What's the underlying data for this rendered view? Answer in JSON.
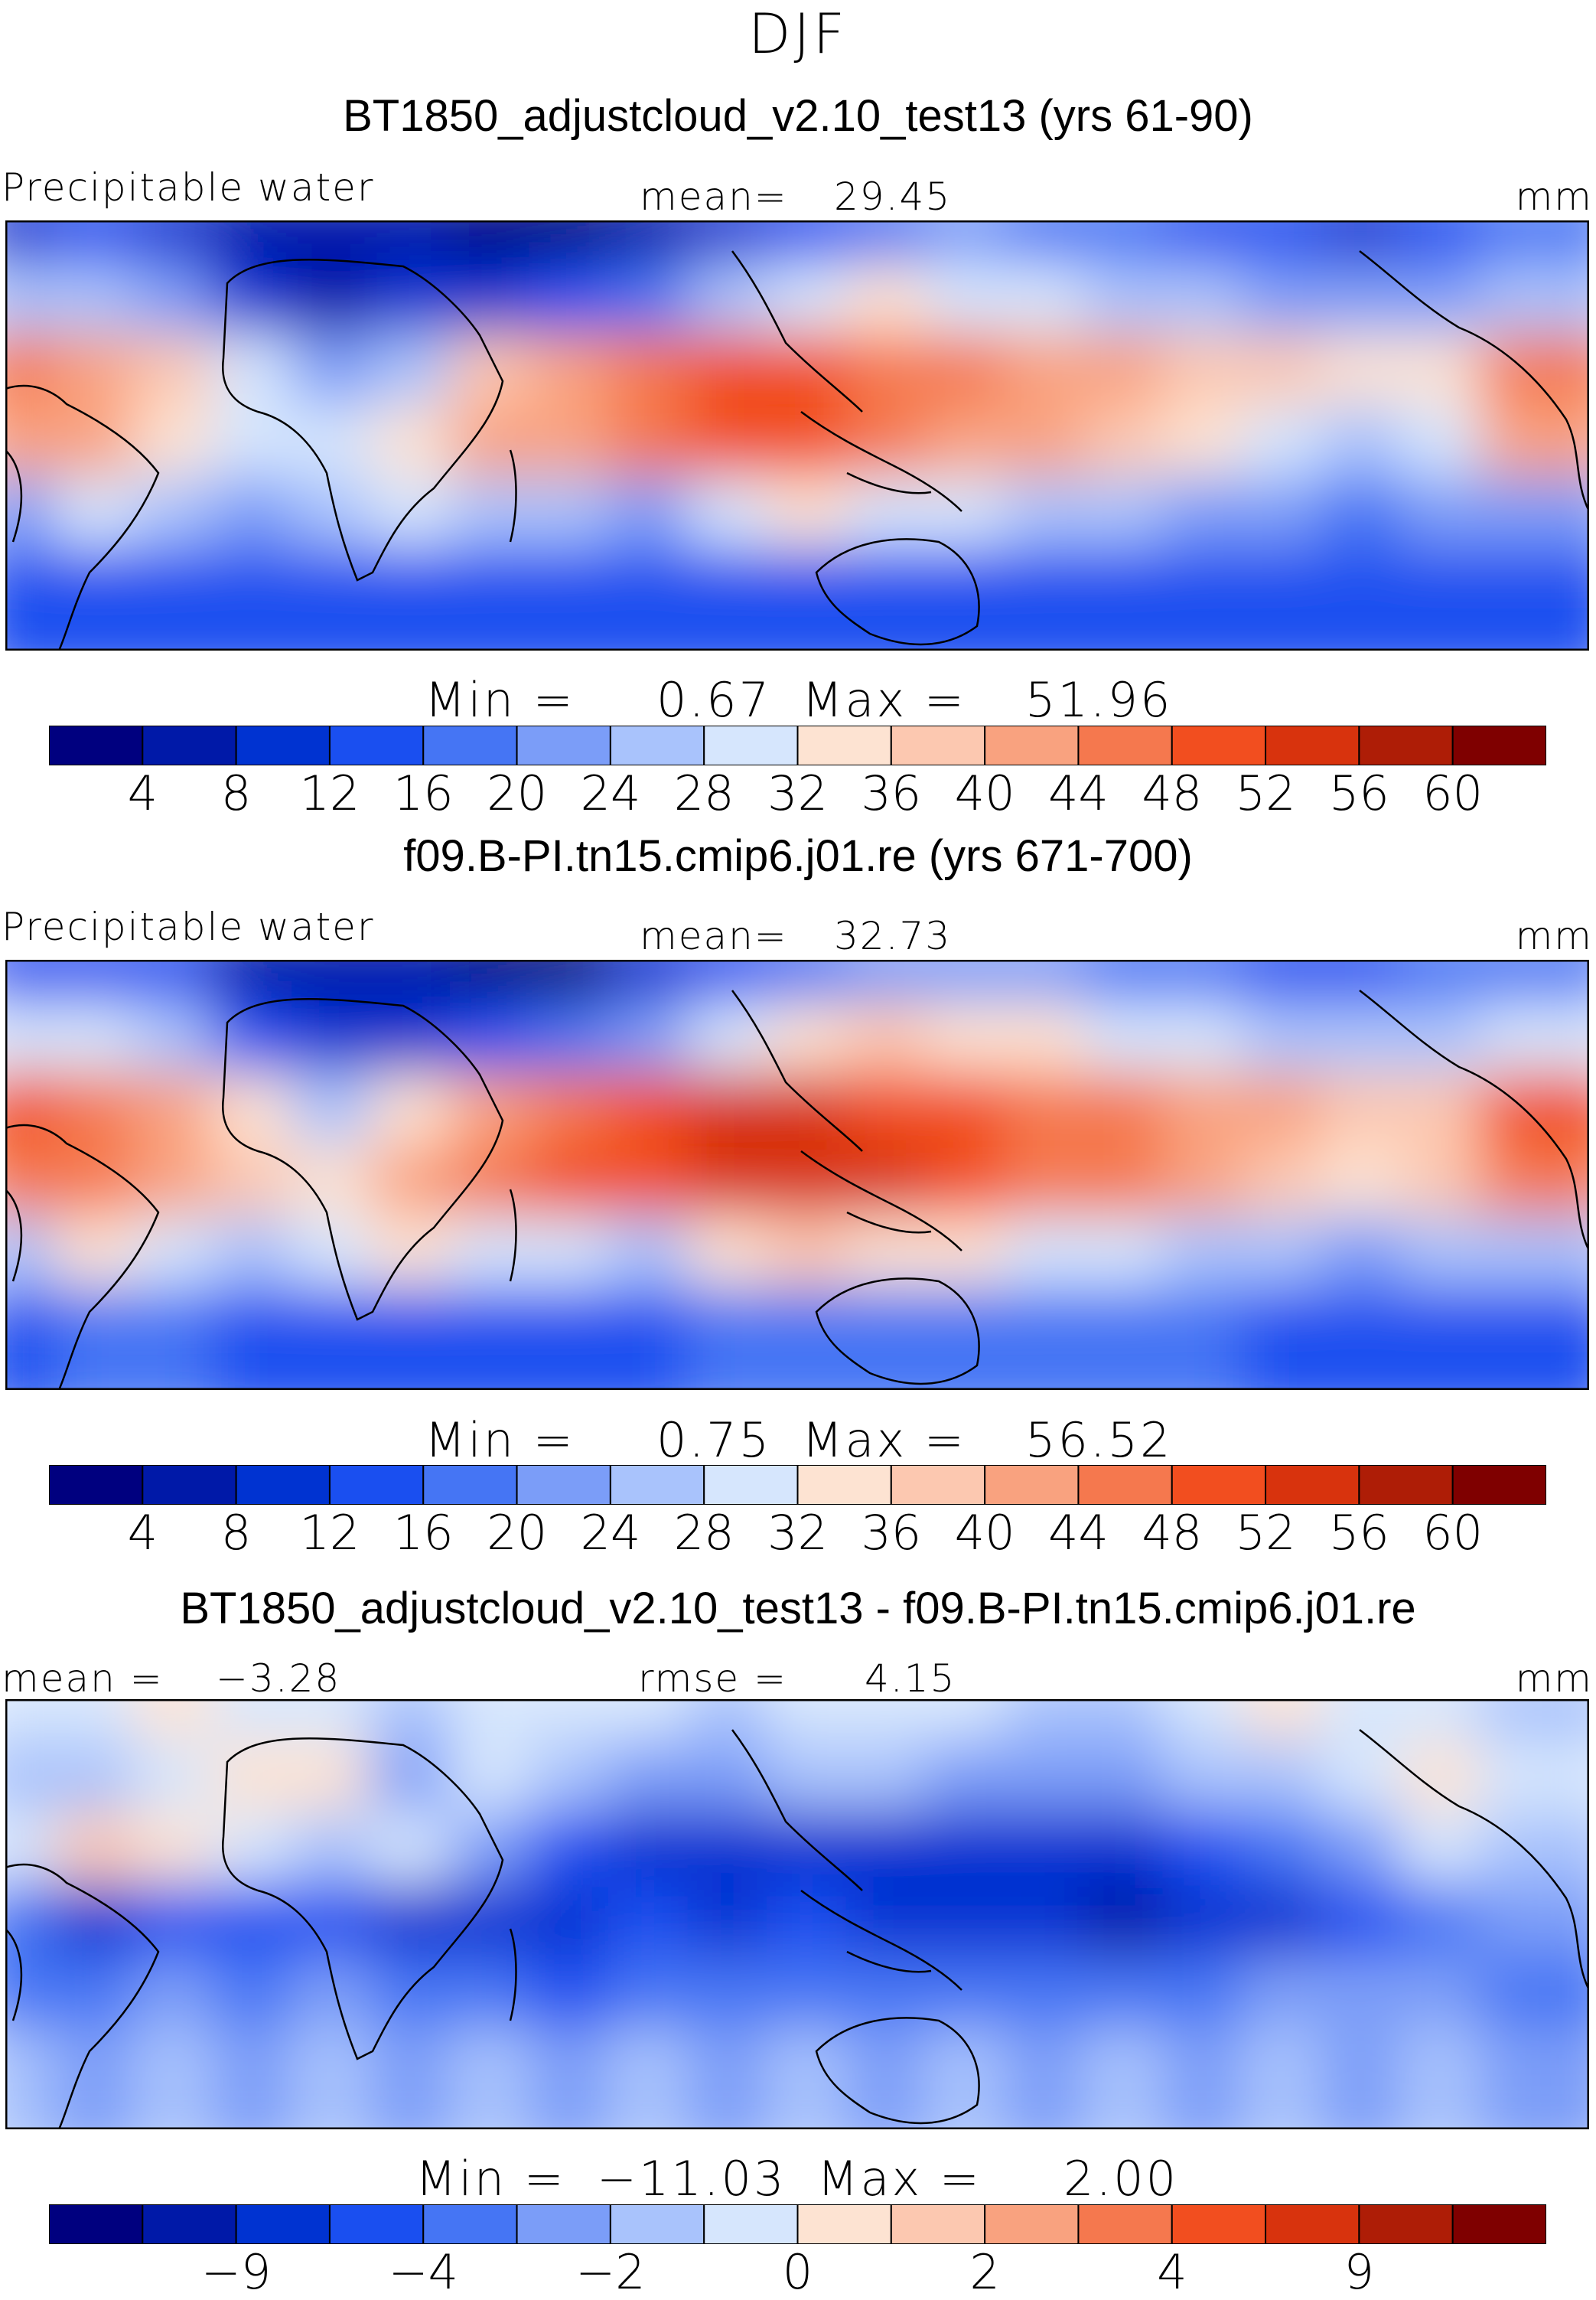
{
  "figure": {
    "season": "DJF",
    "units": "mm"
  },
  "colors": {
    "abs_levels": [
      "#00007f",
      "#0019a8",
      "#0033d1",
      "#1a4ff0",
      "#4575f4",
      "#7b9df8",
      "#a9c3fc",
      "#d6e6fd",
      "#fde3d2",
      "#fcc8b0",
      "#f9a27f",
      "#f5784e",
      "#f24e1f",
      "#d8330d",
      "#ae1d06",
      "#7f0000"
    ],
    "diff_levels": [
      "#00007f",
      "#0019a8",
      "#0033d1",
      "#1a4ff0",
      "#4575f4",
      "#7b9df8",
      "#a9c3fc",
      "#d6e6fd",
      "#fde3d2",
      "#fcc8b0",
      "#f9a27f",
      "#f5784e",
      "#f24e1f",
      "#d8330d",
      "#ae1d06",
      "#7f0000"
    ]
  },
  "chart_data": [
    {
      "type": "heatmap",
      "title": "BT1850_adjustcloud_v2.10_test13 (yrs 61-90)",
      "variable": "Precipitable water",
      "units": "mm",
      "mean_label": "mean=",
      "mean": "29.45",
      "min_label": "Min =",
      "min": "0.67",
      "max_label": "Max =",
      "max": "51.96",
      "colorbar_ticks": [
        "4",
        "8",
        "12",
        "16",
        "20",
        "24",
        "28",
        "32",
        "36",
        "40",
        "44",
        "48",
        "52",
        "56",
        "60"
      ],
      "field": [
        [
          10,
          12,
          10,
          6,
          4,
          5,
          2,
          2,
          6,
          10,
          14,
          18,
          20,
          18,
          16,
          14,
          12,
          10,
          14,
          16
        ],
        [
          26,
          24,
          22,
          10,
          6,
          8,
          10,
          12,
          18,
          26,
          30,
          32,
          30,
          28,
          26,
          24,
          22,
          20,
          22,
          24
        ],
        [
          44,
          42,
          36,
          28,
          20,
          26,
          36,
          40,
          44,
          48,
          50,
          46,
          44,
          42,
          40,
          38,
          36,
          32,
          34,
          44
        ],
        [
          40,
          42,
          34,
          30,
          28,
          34,
          40,
          42,
          44,
          48,
          50,
          46,
          42,
          40,
          36,
          32,
          28,
          26,
          30,
          40
        ],
        [
          22,
          30,
          26,
          20,
          24,
          28,
          26,
          24,
          22,
          28,
          32,
          30,
          28,
          26,
          24,
          22,
          20,
          18,
          20,
          22
        ],
        [
          12,
          14,
          14,
          12,
          12,
          12,
          12,
          12,
          12,
          14,
          14,
          14,
          14,
          14,
          14,
          14,
          12,
          12,
          12,
          12
        ]
      ]
    },
    {
      "type": "heatmap",
      "title": "f09.B-PI.tn15.cmip6.j01.re (yrs 671-700)",
      "variable": "Precipitable water",
      "units": "mm",
      "mean_label": "mean=",
      "mean": "32.73",
      "min_label": "Min =",
      "min": "0.75",
      "max_label": "Max =",
      "max": "56.52",
      "colorbar_ticks": [
        "4",
        "8",
        "12",
        "16",
        "20",
        "24",
        "28",
        "32",
        "36",
        "40",
        "44",
        "48",
        "52",
        "56",
        "60"
      ],
      "field": [
        [
          12,
          14,
          12,
          6,
          4,
          5,
          2,
          2,
          8,
          12,
          16,
          20,
          22,
          20,
          18,
          16,
          14,
          12,
          16,
          18
        ],
        [
          30,
          28,
          26,
          12,
          8,
          10,
          12,
          16,
          22,
          30,
          34,
          36,
          34,
          32,
          30,
          28,
          26,
          24,
          26,
          28
        ],
        [
          48,
          46,
          42,
          34,
          26,
          34,
          42,
          46,
          48,
          52,
          54,
          50,
          48,
          46,
          44,
          42,
          40,
          36,
          38,
          48
        ],
        [
          46,
          46,
          40,
          36,
          34,
          40,
          46,
          48,
          50,
          54,
          54,
          52,
          48,
          46,
          44,
          40,
          36,
          32,
          36,
          44
        ],
        [
          26,
          34,
          30,
          24,
          28,
          32,
          30,
          28,
          26,
          32,
          36,
          34,
          32,
          30,
          28,
          26,
          24,
          22,
          24,
          26
        ],
        [
          14,
          16,
          16,
          14,
          14,
          14,
          14,
          14,
          14,
          16,
          16,
          16,
          16,
          16,
          16,
          16,
          14,
          14,
          14,
          14
        ]
      ]
    },
    {
      "type": "heatmap",
      "title": "BT1850_adjustcloud_v2.10_test13 - f09.B-PI.tn15.cmip6.j01.re",
      "units": "mm",
      "mean_label": "mean =",
      "mean": "−3.28",
      "rmse_label": "rmse =",
      "rmse": "4.15",
      "min_label": "Min =",
      "min": "−11.03",
      "max_label": "Max =",
      "max": "2.00",
      "colorbar_ticks": [
        "−9",
        "−4",
        "−2",
        "0",
        "2",
        "4",
        "9"
      ],
      "field": [
        [
          -1,
          -0.5,
          0.5,
          -0.5,
          -1,
          -2,
          -0.5,
          -1,
          -1,
          -2,
          -1,
          -1,
          -1,
          -2,
          -2,
          -1,
          0.5,
          -0.5,
          -1,
          -2
        ],
        [
          -2,
          -2,
          -1,
          0.5,
          0.5,
          -3,
          -1,
          -2,
          -3,
          -3,
          -2,
          -2,
          -3,
          -3,
          -3,
          -2,
          -2,
          -1,
          0.5,
          -1
        ],
        [
          -1,
          1,
          0.5,
          -1,
          -2,
          -1,
          -3,
          -5,
          -6,
          -7,
          -7,
          -7,
          -7,
          -6,
          -6,
          -5,
          -4,
          -3,
          -1,
          -2
        ],
        [
          -4,
          -6,
          -5,
          -5,
          -5,
          -6,
          -6,
          -6,
          -5,
          -6,
          -5,
          -6,
          -6,
          -7,
          -8,
          -7,
          -6,
          -5,
          -4,
          -3
        ],
        [
          -4,
          -4,
          -3,
          -4,
          -3,
          -4,
          -4,
          -5,
          -4,
          -4,
          -4,
          -4,
          -4,
          -4,
          -4,
          -4,
          -3,
          -3,
          -3,
          -4
        ],
        [
          -2,
          -3,
          -2,
          -3,
          -2,
          -3,
          -2,
          -3,
          -2,
          -3,
          -2,
          -3,
          -2,
          -3,
          -2,
          -3,
          -2,
          -3,
          -2,
          -3
        ]
      ]
    }
  ]
}
